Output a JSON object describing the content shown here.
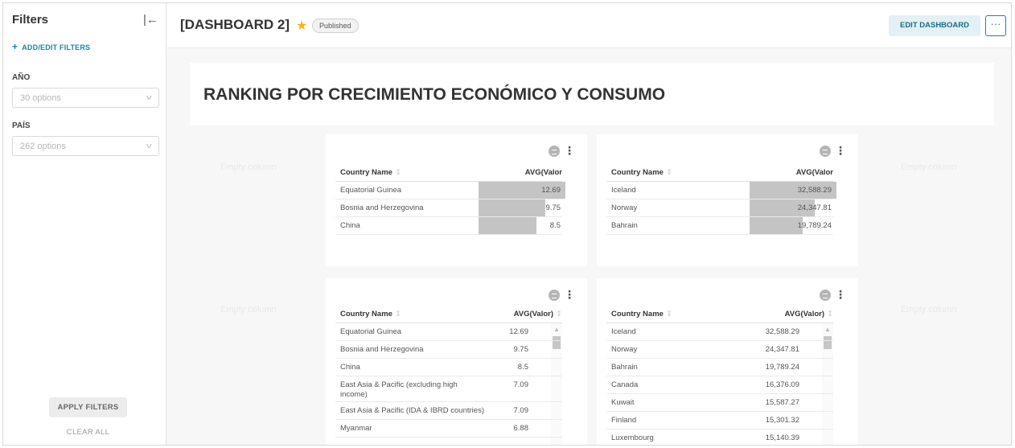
{
  "sidebar": {
    "title": "Filters",
    "collapse_icon": "collapse-left-icon",
    "add_filters": "ADD/EDIT FILTERS",
    "filters": [
      {
        "label": "AÑO",
        "placeholder": "30 options"
      },
      {
        "label": "PAÍS",
        "placeholder": "262 options"
      }
    ],
    "apply": "APPLY FILTERS",
    "clear": "CLEAR ALL"
  },
  "header": {
    "title": "[DASHBOARD 2]",
    "badge": "Published",
    "edit": "EDIT DASHBOARD",
    "more": "···"
  },
  "main": {
    "title": "RANKING POR CRECIMIENTO ECONÓMICO Y CONSUMO",
    "empty_column": "Empty column"
  },
  "colors": {
    "accent": "#1a85a0",
    "star": "#f5b800",
    "bar": "#c4c4c4"
  },
  "charts": [
    {
      "col1": "Country Name",
      "col2": "AVG(Valor",
      "max": 12.69,
      "rows": [
        {
          "name": "Equatorial Guinea",
          "value": "12.69",
          "num": 12.69
        },
        {
          "name": "Bosnia and Herzegovina",
          "value": "9.75",
          "num": 9.75
        },
        {
          "name": "China",
          "value": "8.5",
          "num": 8.5
        }
      ]
    },
    {
      "col1": "Country Name",
      "col2": "AVG(Valor",
      "max": 32588.29,
      "rows": [
        {
          "name": "Iceland",
          "value": "32,588.29",
          "num": 32588.29
        },
        {
          "name": "Norway",
          "value": "24,347.81",
          "num": 24347.81
        },
        {
          "name": "Bahrain",
          "value": "19,789.24",
          "num": 19789.24
        }
      ]
    },
    {
      "col1": "Country Name",
      "col2": "AVG(Valor)",
      "rows": [
        {
          "name": "Equatorial Guinea",
          "value": "12.69"
        },
        {
          "name": "Bosnia and Herzegovina",
          "value": "9.75"
        },
        {
          "name": "China",
          "value": "8.5"
        },
        {
          "name": "East Asia & Pacific (excluding high income)",
          "value": "7.09"
        },
        {
          "name": "East Asia & Pacific (IDA & IBRD countries)",
          "value": "7.09"
        },
        {
          "name": "Myanmar",
          "value": "6.88"
        }
      ]
    },
    {
      "col1": "Country Name",
      "col2": "AVG(Valor)",
      "rows": [
        {
          "name": "Iceland",
          "value": "32,588.29"
        },
        {
          "name": "Norway",
          "value": "24,347.81"
        },
        {
          "name": "Bahrain",
          "value": "19,789.24"
        },
        {
          "name": "Canada",
          "value": "16,376.09"
        },
        {
          "name": "Kuwait",
          "value": "15,587.27"
        },
        {
          "name": "Finland",
          "value": "15,301.32"
        },
        {
          "name": "Luxembourg",
          "value": "15,140.39"
        }
      ]
    }
  ]
}
